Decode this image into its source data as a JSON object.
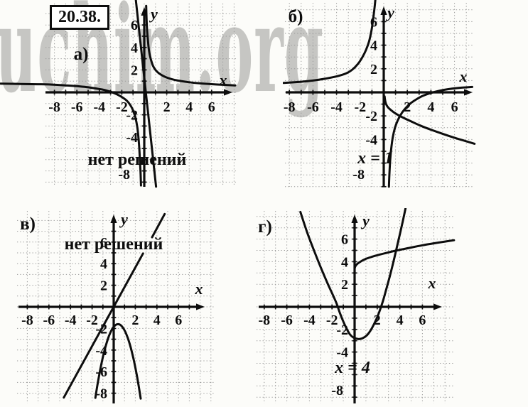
{
  "problem_number": "20.38.",
  "watermark": {
    "text": "uchim.org",
    "color": "#c6c6c3"
  },
  "colors": {
    "ink": "#0d0d0d",
    "grid": "#9a9a9a",
    "background": "#fcfcf9"
  },
  "chart_data": [
    {
      "panel_label": "а)",
      "type": "line",
      "answer": "нет решений",
      "xlabel": "x",
      "ylabel": "y",
      "xlim": [
        -12.8,
        8.2
      ],
      "ylim": [
        -8.5,
        8.2
      ],
      "xticks": [
        -8,
        -6,
        -4,
        -2,
        2,
        4,
        6
      ],
      "yticks": [
        6,
        4,
        2,
        -2,
        -4
      ],
      "bottom_tick": "-8",
      "grid": true,
      "series": [
        {
          "name": "hyperbola-left-branch",
          "points": [
            [
              -12.8,
              0.78
            ],
            [
              -11,
              0.75
            ],
            [
              -9.5,
              0.72
            ],
            [
              -8.5,
              0.7
            ],
            [
              -7,
              0.62
            ],
            [
              -6,
              0.55
            ],
            [
              -5,
              0.45
            ],
            [
              -4,
              0.3
            ],
            [
              -3.5,
              0.2
            ],
            [
              -3,
              0.05
            ],
            [
              -2.6,
              -0.1
            ],
            [
              -2.2,
              -0.3
            ],
            [
              -1.8,
              -0.55
            ],
            [
              -1.5,
              -0.8
            ],
            [
              -1.2,
              -1.2
            ],
            [
              -1,
              -1.6
            ],
            [
              -0.8,
              -2.2
            ],
            [
              -0.62,
              -3.1
            ],
            [
              -0.52,
              -4
            ],
            [
              -0.44,
              -5
            ],
            [
              -0.38,
              -6.2
            ],
            [
              -0.32,
              -7.3
            ],
            [
              -0.29,
              -8.3
            ]
          ]
        },
        {
          "name": "hyperbola-right-branch",
          "points": [
            [
              0.17,
              7.7
            ],
            [
              0.2,
              6.6
            ],
            [
              0.25,
              5.6
            ],
            [
              0.32,
              4.7
            ],
            [
              0.4,
              3.9
            ],
            [
              0.5,
              3.3
            ],
            [
              0.65,
              2.72
            ],
            [
              0.8,
              2.32
            ],
            [
              1,
              2.0
            ],
            [
              1.3,
              1.7
            ],
            [
              1.7,
              1.45
            ],
            [
              2,
              1.32
            ],
            [
              2.5,
              1.16
            ],
            [
              3,
              1.05
            ],
            [
              4,
              0.9
            ],
            [
              5,
              0.8
            ],
            [
              6,
              0.73
            ],
            [
              7,
              0.67
            ],
            [
              8.1,
              0.62
            ]
          ]
        },
        {
          "name": "steep-line",
          "points": [
            [
              -0.75,
              8.2
            ],
            [
              1.05,
              -8.4
            ]
          ]
        }
      ]
    },
    {
      "panel_label": "б)",
      "type": "line",
      "answer": "x = 1",
      "xlabel": "x",
      "ylabel": "y",
      "xlim": [
        -8.5,
        7.7
      ],
      "ylim": [
        -8.1,
        7.7
      ],
      "xticks": [
        -8,
        -6,
        -4,
        -2,
        2,
        4,
        6
      ],
      "yticks": [
        6,
        4,
        2,
        -2,
        -4
      ],
      "bottom_tick": "-8",
      "grid": true,
      "series": [
        {
          "name": "hyperbola-upper-left-branch",
          "points": [
            [
              -8.5,
              0.8
            ],
            [
              -7,
              0.9
            ],
            [
              -6,
              1.0
            ],
            [
              -5,
              1.15
            ],
            [
              -4,
              1.35
            ],
            [
              -3.2,
              1.6
            ],
            [
              -2.7,
              1.9
            ],
            [
              -2.2,
              2.4
            ],
            [
              -1.8,
              3.0
            ],
            [
              -1.5,
              3.6
            ],
            [
              -1.25,
              4.3
            ],
            [
              -1.05,
              5.2
            ],
            [
              -0.9,
              6.2
            ],
            [
              -0.78,
              7.2
            ],
            [
              -0.7,
              8.0
            ]
          ]
        },
        {
          "name": "hyperbola-lower-right-branch",
          "points": [
            [
              0.44,
              -8.0
            ],
            [
              0.48,
              -6.9
            ],
            [
              0.54,
              -5.8
            ],
            [
              0.63,
              -4.8
            ],
            [
              0.76,
              -3.85
            ],
            [
              0.95,
              -3.0
            ],
            [
              1.2,
              -2.35
            ],
            [
              1.5,
              -1.8
            ],
            [
              1.85,
              -1.35
            ],
            [
              2.25,
              -0.95
            ],
            [
              2.75,
              -0.6
            ],
            [
              3.3,
              -0.3
            ],
            [
              4,
              -0.05
            ],
            [
              4.8,
              0.15
            ],
            [
              5.7,
              0.3
            ],
            [
              6.6,
              0.4
            ],
            [
              7.5,
              0.46
            ]
          ]
        },
        {
          "name": "descending-root-curve",
          "points": [
            [
              0.07,
              -0.35
            ],
            [
              0.12,
              -0.7
            ],
            [
              0.2,
              -1.0
            ],
            [
              0.35,
              -1.25
            ],
            [
              0.6,
              -1.5
            ],
            [
              0.9,
              -1.72
            ],
            [
              1.3,
              -1.97
            ],
            [
              1.8,
              -2.22
            ],
            [
              2.4,
              -2.5
            ],
            [
              3.1,
              -2.82
            ],
            [
              4,
              -3.17
            ],
            [
              5,
              -3.52
            ],
            [
              6,
              -3.85
            ],
            [
              7,
              -4.15
            ],
            [
              7.7,
              -4.36
            ]
          ]
        }
      ]
    },
    {
      "panel_label": "в)",
      "type": "line",
      "answer": "нет решений",
      "xlabel": "x",
      "ylabel": "y",
      "xlim": [
        -8.9,
        9.3
      ],
      "ylim": [
        -8.9,
        9.0
      ],
      "xticks": [
        -8,
        -6,
        -4,
        -2,
        2,
        4,
        6
      ],
      "yticks": [
        6,
        4,
        2,
        -2,
        -4,
        -6,
        -8
      ],
      "bottom_tick": null,
      "grid": true,
      "series": [
        {
          "name": "straight-line-lower-part",
          "points": [
            [
              -4.62,
              -8.4
            ],
            [
              2.72,
              4.95
            ]
          ]
        },
        {
          "name": "straight-line-upper-part",
          "points": [
            [
              3.55,
              6.45
            ],
            [
              4.72,
              8.6
            ]
          ]
        },
        {
          "name": "downward-parabola",
          "points": [
            [
              -1.7,
              -8.43
            ],
            [
              -1.45,
              -6.9
            ],
            [
              -1.2,
              -5.57
            ],
            [
              -0.95,
              -4.42
            ],
            [
              -0.7,
              -3.48
            ],
            [
              -0.45,
              -2.72
            ],
            [
              -0.2,
              -2.16
            ],
            [
              0.05,
              -1.79
            ],
            [
              0.3,
              -1.62
            ],
            [
              0.55,
              -1.64
            ],
            [
              0.8,
              -1.86
            ],
            [
              1.05,
              -2.27
            ],
            [
              1.3,
              -2.88
            ],
            [
              1.55,
              -3.68
            ],
            [
              1.8,
              -4.68
            ],
            [
              2.05,
              -5.87
            ],
            [
              2.3,
              -7.26
            ],
            [
              2.5,
              -8.5
            ]
          ]
        }
      ]
    },
    {
      "panel_label": "г)",
      "type": "line",
      "answer": "x = 4",
      "xlabel": "x",
      "ylabel": "y",
      "xlim": [
        -8.8,
        9.0
      ],
      "ylim": [
        -8.7,
        8.7
      ],
      "xticks": [
        -8,
        -6,
        -4,
        -2,
        2,
        4,
        6
      ],
      "yticks": [
        6,
        4,
        2,
        -2,
        -4
      ],
      "bottom_tick": "-8",
      "grid": true,
      "series": [
        {
          "name": "upward-parabola",
          "points": [
            [
              -4.8,
              8.4
            ],
            [
              -4.2,
              6.6
            ],
            [
              -3.6,
              5.0
            ],
            [
              -3.0,
              3.5
            ],
            [
              -2.4,
              2.1
            ],
            [
              -1.9,
              1.0
            ],
            [
              -1.6,
              0.3
            ],
            [
              -1.3,
              -0.55
            ],
            [
              -1.0,
              -1.3
            ],
            [
              -0.7,
              -1.95
            ],
            [
              -0.4,
              -2.45
            ],
            [
              -0.1,
              -2.72
            ],
            [
              0.3,
              -2.85
            ],
            [
              0.7,
              -2.78
            ],
            [
              1.1,
              -2.5
            ],
            [
              1.5,
              -1.95
            ],
            [
              1.9,
              -1.15
            ],
            [
              2.2,
              -0.4
            ],
            [
              2.5,
              0.5
            ],
            [
              2.8,
              1.55
            ],
            [
              3.1,
              2.65
            ],
            [
              3.4,
              3.85
            ],
            [
              3.7,
              5.1
            ],
            [
              4.0,
              6.4
            ],
            [
              4.3,
              7.75
            ],
            [
              4.5,
              8.7
            ]
          ]
        },
        {
          "name": "square-root-curve",
          "points": [
            [
              0,
              3.4
            ],
            [
              0.08,
              3.62
            ],
            [
              0.25,
              3.82
            ],
            [
              0.55,
              4.02
            ],
            [
              1.0,
              4.25
            ],
            [
              1.6,
              4.45
            ],
            [
              2.3,
              4.65
            ],
            [
              3.1,
              4.85
            ],
            [
              4.0,
              5.05
            ],
            [
              5.0,
              5.25
            ],
            [
              6.0,
              5.45
            ],
            [
              7.0,
              5.62
            ],
            [
              8.0,
              5.78
            ],
            [
              8.8,
              5.9
            ]
          ]
        }
      ]
    }
  ]
}
